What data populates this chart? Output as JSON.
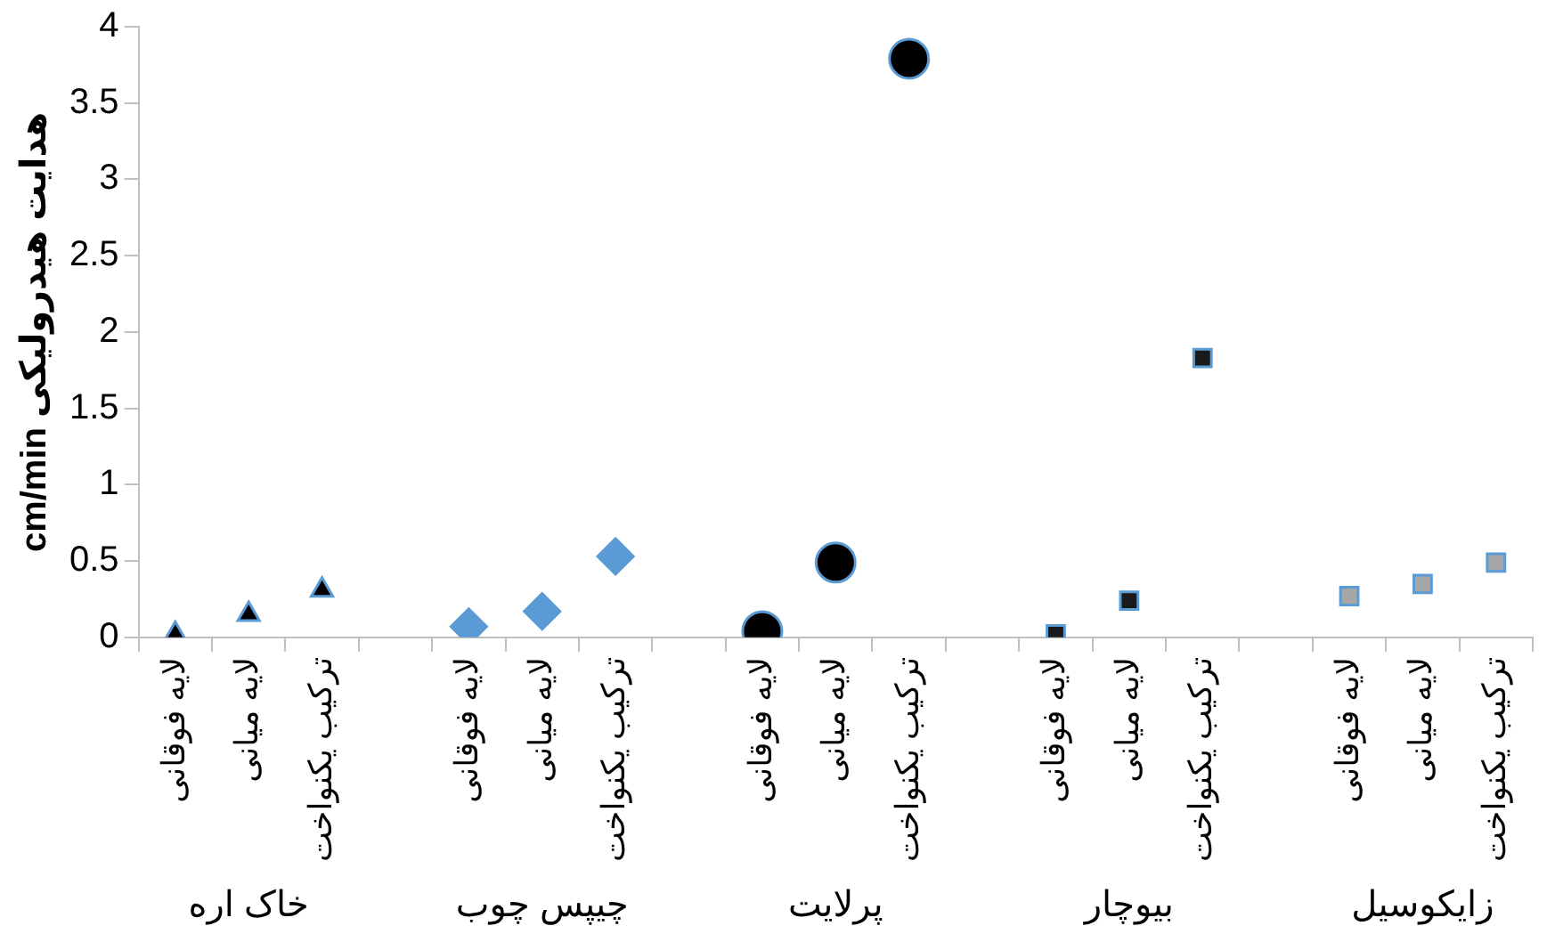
{
  "chart_data": {
    "type": "scatter",
    "ylabel": "cm/min هدایت هیدرولیکی",
    "categories": [
      "لایه فوقانی",
      "لایه میانی",
      "ترکیب یکنواخت",
      null,
      "لایه فوقانی",
      "لایه میانی",
      "ترکیب یکنواخت",
      null,
      "لایه فوقانی",
      "لایه میانی",
      "ترکیب یکنواخت",
      null,
      "لایه فوقانی",
      "لایه میانی",
      "ترکیب یکنواخت",
      null,
      "لایه فوقانی",
      "لایه میانی",
      "ترکیب یکنواخت"
    ],
    "annotations": [
      "خاک اره",
      "چیپس چوب",
      "پرلایت",
      "بیوچار",
      "زایکوسیل"
    ],
    "series": [
      {
        "color": "#000000",
        "marker": "triangle",
        "values": [
          0.02,
          0.15,
          0.31,
          null,
          null,
          null,
          null,
          null,
          null,
          null,
          null,
          null,
          null,
          null,
          null,
          null,
          null,
          null,
          null
        ]
      },
      {
        "color": "#5b9bd5",
        "marker": "diamond",
        "values": [
          null,
          null,
          null,
          null,
          0.07,
          0.17,
          0.53,
          null,
          null,
          null,
          null,
          null,
          null,
          null,
          null,
          null,
          null,
          null,
          null
        ]
      },
      {
        "color": "#000000",
        "marker": "circle",
        "values": [
          null,
          null,
          null,
          null,
          null,
          null,
          null,
          null,
          0.04,
          0.49,
          3.79,
          null,
          null,
          null,
          null,
          null,
          null,
          null,
          null
        ]
      },
      {
        "color": "#1a1a1a",
        "marker": "square",
        "values": [
          null,
          null,
          null,
          null,
          null,
          null,
          null,
          null,
          null,
          null,
          null,
          null,
          0.02,
          0.24,
          1.83,
          null,
          null,
          null,
          null
        ]
      },
      {
        "color": "#a6a6a6",
        "marker": "square",
        "values": [
          null,
          null,
          null,
          null,
          null,
          null,
          null,
          null,
          null,
          null,
          null,
          null,
          null,
          null,
          null,
          null,
          0.27,
          0.35,
          0.49
        ]
      }
    ],
    "ylim": [
      0,
      4
    ],
    "yticks": [
      0,
      0.5,
      1,
      1.5,
      2,
      2.5,
      3,
      3.5,
      4
    ],
    "grid": false,
    "legend": false
  }
}
